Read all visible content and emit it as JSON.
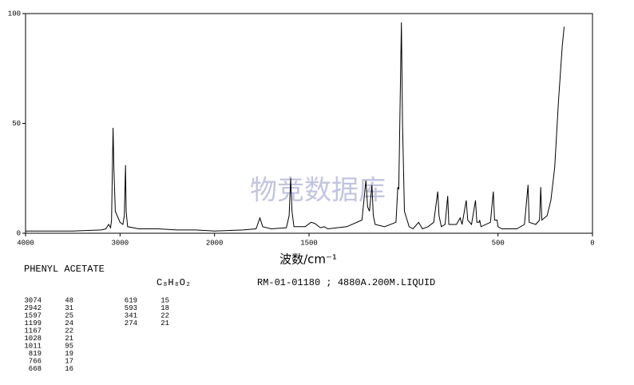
{
  "chart_data": {
    "type": "line",
    "x_label": "波数/cm⁻¹",
    "watermark": "物竞数据库",
    "xlim": [
      4000,
      0
    ],
    "xscale": {
      "break": 2000,
      "zoom": 2
    },
    "xticks": [
      4000,
      3000,
      2000,
      1500,
      500,
      0
    ],
    "ylim": [
      0,
      100
    ],
    "yticks": [
      0,
      50,
      100
    ],
    "x": [
      4000,
      3500,
      3200,
      3150,
      3120,
      3100,
      3090,
      3074,
      3065,
      3050,
      3000,
      2970,
      2955,
      2942,
      2935,
      2920,
      2800,
      2600,
      2400,
      2200,
      2000,
      1850,
      1780,
      1760,
      1745,
      1700,
      1620,
      1605,
      1597,
      1590,
      1580,
      1520,
      1490,
      1470,
      1440,
      1420,
      1400,
      1300,
      1220,
      1199,
      1190,
      1180,
      1167,
      1160,
      1150,
      1100,
      1040,
      1030,
      1025,
      1011,
      1005,
      995,
      970,
      950,
      920,
      900,
      870,
      840,
      819,
      812,
      800,
      780,
      766,
      760,
      720,
      700,
      690,
      668,
      660,
      640,
      619,
      612,
      600,
      597,
      590,
      540,
      525,
      518,
      505,
      500,
      480,
      400,
      360,
      341,
      335,
      300,
      280,
      274,
      268,
      240,
      220,
      200,
      180,
      160,
      150
    ],
    "series": [
      {
        "name": "PHENYL ACETATE",
        "color": "#000000",
        "values": [
          1,
          1,
          1.5,
          2,
          4,
          2.5,
          6,
          48,
          30,
          10,
          5,
          4,
          8,
          31,
          10,
          3,
          2,
          2,
          1.5,
          1.5,
          1,
          1.5,
          2,
          7,
          3,
          2,
          2.5,
          8,
          25,
          10,
          3,
          3,
          5,
          4.5,
          2.5,
          3,
          2,
          3,
          6,
          24,
          12,
          10,
          22,
          8,
          4,
          3,
          5,
          21,
          20,
          96,
          50,
          10,
          3,
          2,
          5,
          2,
          3,
          5,
          19,
          8,
          3,
          4,
          17,
          4,
          4,
          7,
          4,
          15,
          6,
          4,
          15,
          5,
          5,
          6,
          3,
          5,
          19,
          6,
          6,
          3,
          2,
          2,
          4,
          22,
          5,
          4,
          6,
          21,
          6,
          8,
          15,
          30,
          60,
          85,
          94
        ]
      }
    ]
  },
  "sample": {
    "name": "PHENYL ACETATE",
    "formula": "C₈H₈O₂",
    "code": "RM-01-01180 ; 4880A.200M.LIQUID",
    "peak_table": [
      [
        [
          3074,
          48
        ],
        [
          2942,
          31
        ],
        [
          1597,
          25
        ],
        [
          1199,
          24
        ],
        [
          1167,
          22
        ],
        [
          1028,
          21
        ],
        [
          1011,
          95
        ],
        [
          819,
          19
        ],
        [
          766,
          17
        ],
        [
          668,
          16
        ]
      ],
      [
        [
          619,
          15
        ],
        [
          593,
          18
        ],
        [
          341,
          22
        ],
        [
          274,
          21
        ]
      ]
    ]
  }
}
